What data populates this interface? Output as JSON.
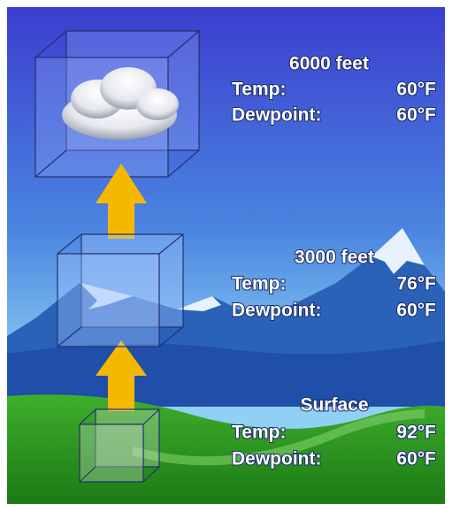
{
  "levels": [
    {
      "label": "6000 feet",
      "temp_label": "Temp:",
      "temp": "60°F",
      "dewpoint_label": "Dewpoint:",
      "dewpoint": "60°F"
    },
    {
      "label": "3000 feet",
      "temp_label": "Temp:",
      "temp": "76°F",
      "dewpoint_label": "Dewpoint:",
      "dewpoint": "60°F"
    },
    {
      "label": "Surface",
      "temp_label": "Temp:",
      "temp": "92°F",
      "dewpoint_label": "Dewpoint:",
      "dewpoint": "60°F"
    }
  ]
}
